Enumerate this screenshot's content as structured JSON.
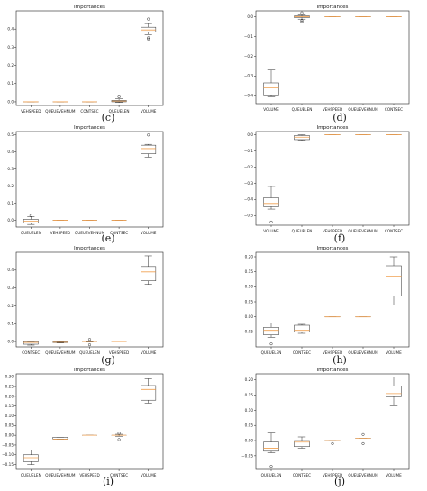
{
  "style": {
    "box_color": "#2b2b2b",
    "median_color": "#f0a050",
    "flier_color": "#2b2b2b",
    "axis_color": "#222222"
  },
  "chart_data": [
    {
      "panel": "(c)",
      "type": "box",
      "title": "Importances",
      "categories": [
        "VEHSPEED",
        "QUEUEVEHNUM",
        "CONTSEC",
        "QUEUELEN",
        "VOLUME"
      ],
      "ylim": [
        -0.02,
        0.5
      ],
      "yticks": [
        "0.0",
        "0.1",
        "0.2",
        "0.3",
        "0.4"
      ],
      "ytick_values": [
        0,
        0.1,
        0.2,
        0.3,
        0.4
      ],
      "boxes": [
        {
          "wl": 0,
          "q1": 0,
          "med": 0,
          "q3": 0,
          "wh": 0,
          "fliers": []
        },
        {
          "wl": 0,
          "q1": 0,
          "med": 0,
          "q3": 0,
          "wh": 0,
          "fliers": []
        },
        {
          "wl": 0,
          "q1": 0,
          "med": 0,
          "q3": 0,
          "wh": 0,
          "fliers": []
        },
        {
          "wl": -0.004,
          "q1": 0.0,
          "med": 0.004,
          "q3": 0.008,
          "wh": 0.016,
          "fliers": [
            0.027
          ]
        },
        {
          "wl": 0.37,
          "q1": 0.385,
          "med": 0.395,
          "q3": 0.41,
          "wh": 0.43,
          "fliers": [
            0.345,
            0.352,
            0.455
          ]
        }
      ]
    },
    {
      "panel": "(d)",
      "type": "box",
      "title": "Importances",
      "categories": [
        "VOLUME",
        "QUEUELEN",
        "VEHSPEED",
        "QUEUEVEHNUM",
        "CONTSEC"
      ],
      "ylim": [
        -0.44,
        0.03
      ],
      "yticks": [
        "0.0",
        "−0.1",
        "−0.2",
        "−0.3",
        "−0.4"
      ],
      "ytick_values": [
        0,
        -0.1,
        -0.2,
        -0.3,
        -0.4
      ],
      "boxes": [
        {
          "wl": -0.405,
          "q1": -0.4,
          "med": -0.36,
          "q3": -0.335,
          "wh": -0.27,
          "fliers": []
        },
        {
          "wl": -0.012,
          "q1": -0.004,
          "med": 0.0,
          "q3": 0.004,
          "wh": 0.01,
          "fliers": [
            -0.026,
            -0.02,
            0.02
          ]
        },
        {
          "wl": 0,
          "q1": 0,
          "med": 0,
          "q3": 0,
          "wh": 0,
          "fliers": []
        },
        {
          "wl": 0,
          "q1": 0,
          "med": 0,
          "q3": 0,
          "wh": 0,
          "fliers": []
        },
        {
          "wl": 0,
          "q1": 0,
          "med": 0,
          "q3": 0,
          "wh": 0,
          "fliers": []
        }
      ]
    },
    {
      "panel": "(e)",
      "type": "box",
      "title": "Importances",
      "categories": [
        "QUEUELEN",
        "VEHSPEED",
        "QUEUEVEHNUM",
        "CONTSEC",
        "VOLUME"
      ],
      "ylim": [
        -0.04,
        0.52
      ],
      "yticks": [
        "0.0",
        "0.1",
        "0.2",
        "0.3",
        "0.4",
        "0.5"
      ],
      "ytick_values": [
        0,
        0.1,
        0.2,
        0.3,
        0.4,
        0.5
      ],
      "boxes": [
        {
          "wl": -0.025,
          "q1": -0.015,
          "med": -0.005,
          "q3": 0.005,
          "wh": 0.02,
          "fliers": [
            0.028
          ]
        },
        {
          "wl": 0,
          "q1": 0,
          "med": 0,
          "q3": 0,
          "wh": 0,
          "fliers": []
        },
        {
          "wl": 0,
          "q1": 0,
          "med": 0,
          "q3": 0,
          "wh": 0,
          "fliers": []
        },
        {
          "wl": 0,
          "q1": 0,
          "med": 0,
          "q3": 0,
          "wh": 0,
          "fliers": []
        },
        {
          "wl": 0.37,
          "q1": 0.39,
          "med": 0.42,
          "q3": 0.44,
          "wh": 0.445,
          "fliers": [
            0.5
          ]
        }
      ]
    },
    {
      "panel": "(f)",
      "type": "box",
      "title": "Importances",
      "categories": [
        "VOLUME",
        "QUEUELEN",
        "VEHSPEED",
        "QUEUEVEHNUM",
        "CONTSEC"
      ],
      "ylim": [
        -0.56,
        0.02
      ],
      "yticks": [
        "0.0",
        "−0.1",
        "−0.2",
        "−0.3",
        "−0.4",
        "−0.5"
      ],
      "ytick_values": [
        0,
        -0.1,
        -0.2,
        -0.3,
        -0.4,
        -0.5
      ],
      "boxes": [
        {
          "wl": -0.46,
          "q1": -0.445,
          "med": -0.425,
          "q3": -0.39,
          "wh": -0.32,
          "fliers": [
            -0.54
          ]
        },
        {
          "wl": -0.035,
          "q1": -0.03,
          "med": -0.015,
          "q3": -0.005,
          "wh": 0.0,
          "fliers": []
        },
        {
          "wl": 0,
          "q1": 0,
          "med": 0,
          "q3": 0,
          "wh": 0,
          "fliers": []
        },
        {
          "wl": 0,
          "q1": 0,
          "med": 0,
          "q3": 0,
          "wh": 0,
          "fliers": []
        },
        {
          "wl": 0,
          "q1": 0,
          "med": 0,
          "q3": 0,
          "wh": 0,
          "fliers": []
        }
      ]
    },
    {
      "panel": "(g)",
      "type": "box",
      "title": "Importances",
      "categories": [
        "CONTSEC",
        "QUEUEVEHNUM",
        "QUEUELEN",
        "VEHSPEED",
        "VOLUME"
      ],
      "ylim": [
        -0.03,
        0.5
      ],
      "yticks": [
        "0.0",
        "0.1",
        "0.2",
        "0.3",
        "0.4"
      ],
      "ytick_values": [
        0,
        0.1,
        0.2,
        0.3,
        0.4
      ],
      "boxes": [
        {
          "wl": -0.02,
          "q1": -0.015,
          "med": -0.005,
          "q3": 0.0,
          "wh": 0.0,
          "fliers": []
        },
        {
          "wl": -0.008,
          "q1": -0.006,
          "med": -0.004,
          "q3": -0.002,
          "wh": 0.0,
          "fliers": []
        },
        {
          "wl": -0.003,
          "q1": 0,
          "med": 0,
          "q3": 0,
          "wh": 0.003,
          "fliers": [
            -0.018,
            0.012
          ]
        },
        {
          "wl": 0,
          "q1": 0,
          "med": 0,
          "q3": 0,
          "wh": 0,
          "fliers": []
        },
        {
          "wl": 0.32,
          "q1": 0.34,
          "med": 0.39,
          "q3": 0.42,
          "wh": 0.48,
          "fliers": []
        }
      ]
    },
    {
      "panel": "(h)",
      "type": "box",
      "title": "Importances",
      "categories": [
        "QUEUELEN",
        "CONTSEC",
        "VEHSPEED",
        "QUEUEVEHNUM",
        "VOLUME"
      ],
      "ylim": [
        -0.1,
        0.215
      ],
      "yticks": [
        "0.20",
        "0.15",
        "0.10",
        "0.05",
        "0.00",
        "−0.05"
      ],
      "ytick_values": [
        0.2,
        0.15,
        0.1,
        0.05,
        0,
        -0.05
      ],
      "boxes": [
        {
          "wl": -0.068,
          "q1": -0.06,
          "med": -0.045,
          "q3": -0.035,
          "wh": -0.02,
          "fliers": [
            -0.09
          ]
        },
        {
          "wl": -0.055,
          "q1": -0.05,
          "med": -0.045,
          "q3": -0.028,
          "wh": -0.025,
          "fliers": []
        },
        {
          "wl": 0,
          "q1": 0,
          "med": 0,
          "q3": 0,
          "wh": 0,
          "fliers": []
        },
        {
          "wl": 0,
          "q1": 0,
          "med": 0,
          "q3": 0,
          "wh": 0,
          "fliers": []
        },
        {
          "wl": 0.04,
          "q1": 0.07,
          "med": 0.135,
          "q3": 0.17,
          "wh": 0.2,
          "fliers": []
        }
      ]
    },
    {
      "panel": "(i)",
      "type": "box",
      "title": "Importances",
      "categories": [
        "QUEUELEN",
        "QUEUEVEHNUM",
        "VEHSPEED",
        "CONTSEC",
        "VOLUME"
      ],
      "ylim": [
        -0.175,
        0.315
      ],
      "yticks": [
        "0.30",
        "0.25",
        "0.20",
        "0.15",
        "0.10",
        "0.05",
        "0.00",
        "−0.05",
        "−0.10",
        "−0.15"
      ],
      "ytick_values": [
        0.3,
        0.25,
        0.2,
        0.15,
        0.1,
        0.05,
        0,
        -0.05,
        -0.1,
        -0.15
      ],
      "boxes": [
        {
          "wl": -0.15,
          "q1": -0.135,
          "med": -0.115,
          "q3": -0.1,
          "wh": -0.075,
          "fliers": []
        },
        {
          "wl": -0.02,
          "q1": -0.02,
          "med": -0.02,
          "q3": -0.01,
          "wh": -0.01,
          "fliers": []
        },
        {
          "wl": 0,
          "q1": 0,
          "med": 0,
          "q3": 0,
          "wh": 0,
          "fliers": []
        },
        {
          "wl": -0.005,
          "q1": 0,
          "med": 0,
          "q3": 0,
          "wh": 0.005,
          "fliers": [
            -0.022,
            0.01
          ]
        },
        {
          "wl": 0.165,
          "q1": 0.18,
          "med": 0.235,
          "q3": 0.255,
          "wh": 0.29,
          "fliers": []
        }
      ]
    },
    {
      "panel": "(j)",
      "type": "box",
      "title": "Importances",
      "categories": [
        "QUEUELEN",
        "CONTSEC",
        "VEHSPEED",
        "QUEUEVEHNUM",
        "VOLUME"
      ],
      "ylim": [
        -0.095,
        0.22
      ],
      "yticks": [
        "0.20",
        "0.15",
        "0.10",
        "0.05",
        "0.00",
        "−0.05"
      ],
      "ytick_values": [
        0.2,
        0.15,
        0.1,
        0.05,
        0,
        -0.05
      ],
      "boxes": [
        {
          "wl": -0.04,
          "q1": -0.035,
          "med": -0.025,
          "q3": -0.005,
          "wh": 0.025,
          "fliers": [
            -0.085
          ]
        },
        {
          "wl": -0.025,
          "q1": -0.02,
          "med": -0.005,
          "q3": 0.0,
          "wh": 0.012,
          "fliers": []
        },
        {
          "wl": 0,
          "q1": 0,
          "med": 0,
          "q3": 0,
          "wh": 0,
          "fliers": [
            -0.01
          ]
        },
        {
          "wl": 0.008,
          "q1": 0.008,
          "med": 0.008,
          "q3": 0.008,
          "wh": 0.008,
          "fliers": [
            -0.01,
            0.02
          ]
        },
        {
          "wl": 0.115,
          "q1": 0.145,
          "med": 0.155,
          "q3": 0.18,
          "wh": 0.21,
          "fliers": []
        }
      ]
    }
  ]
}
